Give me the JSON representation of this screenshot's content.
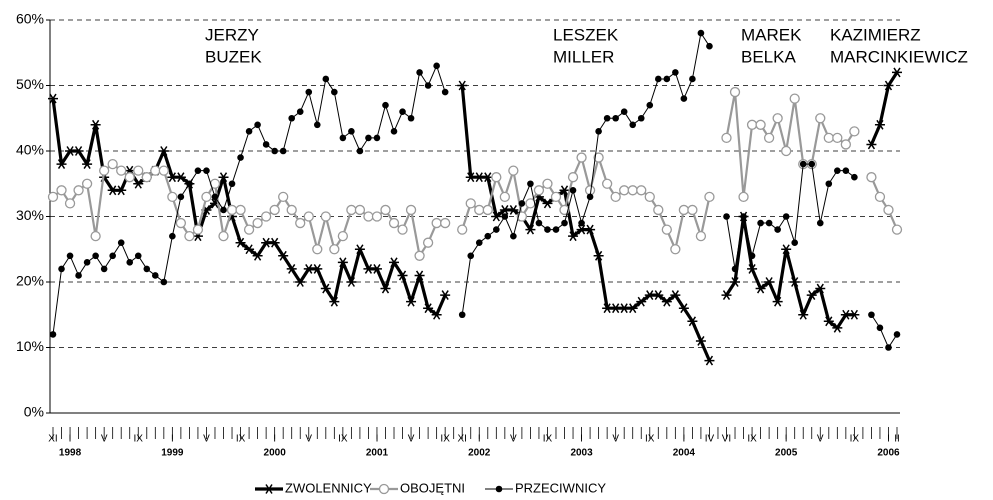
{
  "chart_data": {
    "type": "line",
    "ylim": [
      0,
      60
    ],
    "yticks": [
      {
        "value": 0,
        "label": "0%"
      },
      {
        "value": 10,
        "label": "10%"
      },
      {
        "value": 20,
        "label": "20%"
      },
      {
        "value": 30,
        "label": "30%"
      },
      {
        "value": 40,
        "label": "40%"
      },
      {
        "value": 50,
        "label": "50%"
      },
      {
        "value": 60,
        "label": "60%"
      }
    ],
    "grid": true,
    "legend": "bottom",
    "categories": [
      "XI",
      null,
      "I",
      null,
      null,
      null,
      "V",
      null,
      null,
      null,
      "IX",
      null,
      null,
      null,
      "I",
      null,
      null,
      null,
      "V",
      null,
      null,
      null,
      "IX",
      null,
      null,
      null,
      "I",
      null,
      null,
      null,
      "V",
      null,
      null,
      null,
      "IX",
      null,
      null,
      null,
      "I",
      null,
      null,
      null,
      "V",
      null,
      null,
      null,
      "IX",
      null,
      "XI",
      null,
      "I",
      null,
      null,
      null,
      "V",
      null,
      null,
      null,
      "IX",
      null,
      null,
      null,
      "I",
      null,
      null,
      null,
      "V",
      null,
      null,
      null,
      "IX",
      null,
      null,
      null,
      "I",
      null,
      null,
      "IV",
      null,
      "VI",
      null,
      null,
      "IX",
      null,
      null,
      null,
      "I",
      null,
      null,
      null,
      "V",
      null,
      null,
      null,
      "IX",
      null,
      null,
      null,
      "I",
      "II"
    ],
    "years": [
      null,
      null,
      "1998",
      null,
      null,
      null,
      null,
      null,
      null,
      null,
      null,
      null,
      null,
      null,
      "1999",
      null,
      null,
      null,
      null,
      null,
      null,
      null,
      null,
      null,
      null,
      null,
      "2000",
      null,
      null,
      null,
      null,
      null,
      null,
      null,
      null,
      null,
      null,
      null,
      "2001",
      null,
      null,
      null,
      null,
      null,
      null,
      null,
      null,
      null,
      null,
      null,
      "2002",
      null,
      null,
      null,
      null,
      null,
      null,
      null,
      null,
      null,
      null,
      null,
      "2003",
      null,
      null,
      null,
      null,
      null,
      null,
      null,
      null,
      null,
      null,
      null,
      "2004",
      null,
      null,
      null,
      null,
      null,
      null,
      null,
      null,
      null,
      null,
      null,
      "2005",
      null,
      null,
      null,
      null,
      null,
      null,
      null,
      null,
      null,
      null,
      null,
      "2006",
      null
    ],
    "annotations": [
      {
        "lines": [
          "JERZY",
          "BUZEK"
        ]
      },
      {
        "lines": [
          "LESZEK",
          "MILLER"
        ]
      },
      {
        "lines": [
          "MAREK",
          "BELKA"
        ]
      },
      {
        "lines": [
          "KAZIMIERZ",
          "MARCINKIEWICZ"
        ]
      }
    ],
    "series": [
      {
        "name": "ZWOLENNICY",
        "color": "#000000",
        "values": [
          48,
          38,
          40,
          40,
          38,
          44,
          36,
          34,
          34,
          37,
          35,
          36,
          37,
          40,
          36,
          36,
          35,
          27,
          31,
          32,
          36,
          30,
          26,
          25,
          24,
          26,
          26,
          24,
          22,
          20,
          22,
          22,
          19,
          17,
          23,
          20,
          25,
          22,
          22,
          19,
          23,
          21,
          17,
          21,
          16,
          15,
          18,
          null,
          50,
          36,
          36,
          36,
          30,
          31,
          31,
          30,
          28,
          33,
          32,
          33,
          34,
          27,
          28,
          28,
          24,
          16,
          16,
          16,
          16,
          17,
          18,
          18,
          17,
          18,
          16,
          14,
          11,
          8,
          null,
          18,
          20,
          30,
          22,
          19,
          20,
          17,
          25,
          20,
          15,
          18,
          19,
          14,
          13,
          15,
          15,
          null,
          41,
          44,
          50,
          52
        ]
      },
      {
        "name": "OBOJĘTNI",
        "color": "#999999",
        "values": [
          33,
          34,
          32,
          34,
          35,
          27,
          37,
          38,
          37,
          36,
          37,
          36,
          37,
          37,
          33,
          29,
          27,
          28,
          33,
          35,
          27,
          31,
          31,
          28,
          29,
          30,
          31,
          33,
          31,
          29,
          30,
          25,
          30,
          25,
          27,
          31,
          31,
          30,
          30,
          31,
          29,
          28,
          31,
          24,
          26,
          29,
          29,
          null,
          28,
          32,
          31,
          31,
          36,
          33,
          37,
          30,
          32,
          34,
          35,
          33,
          31,
          36,
          39,
          34,
          39,
          35,
          33,
          34,
          34,
          34,
          33,
          31,
          28,
          25,
          31,
          31,
          27,
          33,
          null,
          42,
          49,
          33,
          44,
          44,
          42,
          45,
          40,
          48,
          38,
          38,
          45,
          42,
          42,
          41,
          43,
          null,
          36,
          33,
          31,
          28
        ]
      },
      {
        "name": "PRZECIWNICY",
        "color": "#000000",
        "values": [
          12,
          22,
          24,
          21,
          23,
          24,
          22,
          24,
          26,
          23,
          24,
          22,
          21,
          20,
          27,
          33,
          35,
          37,
          37,
          33,
          31,
          35,
          39,
          43,
          44,
          41,
          40,
          40,
          45,
          46,
          49,
          44,
          51,
          49,
          42,
          43,
          40,
          42,
          42,
          47,
          43,
          46,
          45,
          52,
          50,
          53,
          49,
          null,
          15,
          24,
          26,
          27,
          28,
          30,
          27,
          32,
          35,
          29,
          28,
          28,
          29,
          34,
          29,
          33,
          43,
          45,
          45,
          46,
          44,
          45,
          47,
          51,
          51,
          52,
          48,
          51,
          58,
          56,
          null,
          30,
          22,
          30,
          24,
          29,
          29,
          28,
          30,
          26,
          38,
          38,
          29,
          35,
          37,
          37,
          36,
          null,
          15,
          13,
          10,
          12
        ]
      }
    ]
  }
}
